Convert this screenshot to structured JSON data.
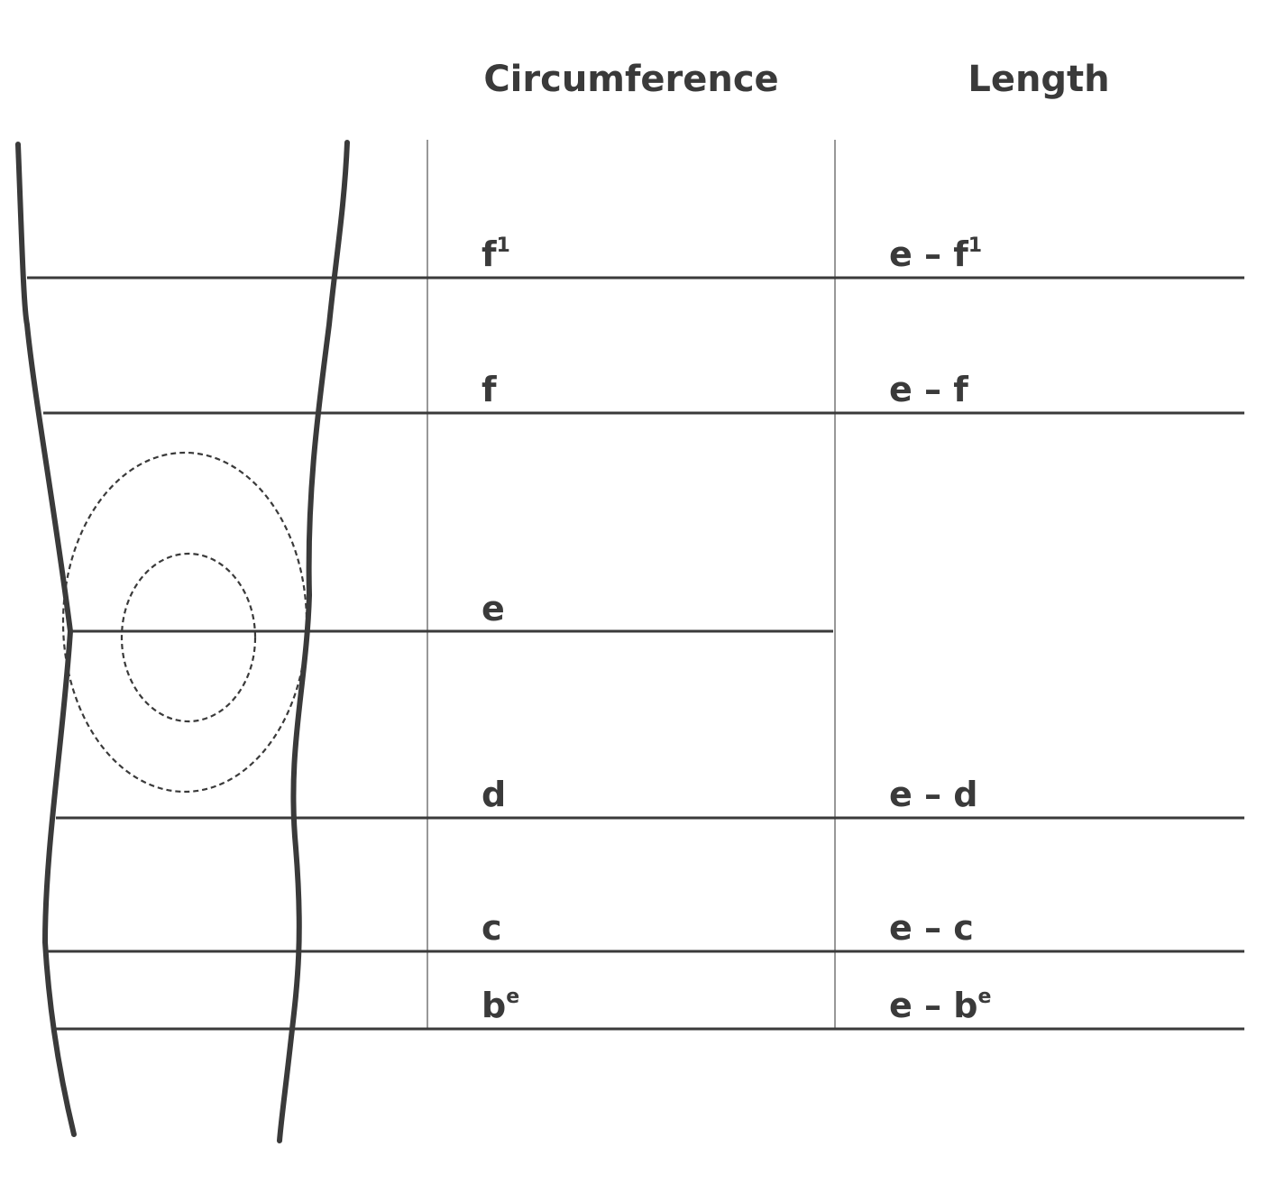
{
  "headers": {
    "circumference": "Circumference",
    "length": "Length"
  },
  "rows": [
    {
      "id": "f1",
      "circ_base": "f",
      "circ_sup": "1",
      "len_base": "e – f",
      "len_sup": "1"
    },
    {
      "id": "f",
      "circ_base": "f",
      "circ_sup": "",
      "len_base": "e – f",
      "len_sup": ""
    },
    {
      "id": "e",
      "circ_base": "e",
      "circ_sup": "",
      "len_base": "",
      "len_sup": ""
    },
    {
      "id": "d",
      "circ_base": "d",
      "circ_sup": "",
      "len_base": "e – d",
      "len_sup": ""
    },
    {
      "id": "c",
      "circ_base": "c",
      "circ_sup": "",
      "len_base": "e – c",
      "len_sup": ""
    },
    {
      "id": "b",
      "circ_base": "b",
      "circ_sup": "e",
      "len_base": "e – b",
      "len_sup": "e"
    }
  ],
  "colors": {
    "ink": "#3a3a3a",
    "divider": "#777777",
    "background": "#ffffff"
  }
}
